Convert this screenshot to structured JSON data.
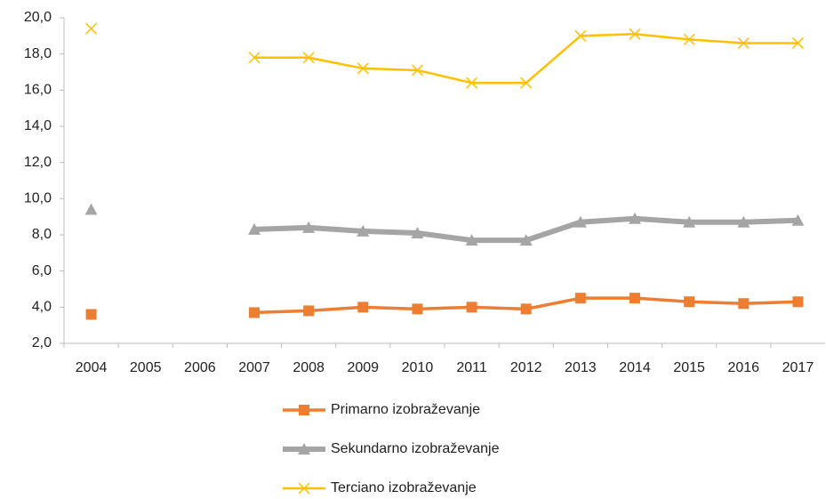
{
  "chart_data": {
    "type": "line",
    "categories": [
      "2004",
      "2005",
      "2006",
      "2007",
      "2008",
      "2009",
      "2010",
      "2011",
      "2012",
      "2013",
      "2014",
      "2015",
      "2016",
      "2017"
    ],
    "series": [
      {
        "name": "Primarno izobraževanje",
        "color": "#ED7D31",
        "marker": "square",
        "values": [
          3.6,
          null,
          null,
          3.7,
          3.8,
          4.0,
          3.9,
          4.0,
          3.9,
          4.5,
          4.5,
          4.3,
          4.2,
          4.3
        ]
      },
      {
        "name": "Sekundarno izobraževanje",
        "color": "#A5A5A5",
        "marker": "triangle",
        "values": [
          9.4,
          null,
          null,
          8.3,
          8.4,
          8.2,
          8.1,
          7.7,
          7.7,
          8.7,
          8.9,
          8.7,
          8.7,
          8.8
        ]
      },
      {
        "name": "Terciano izobraževanje",
        "color": "#FFC000",
        "marker": "x",
        "values": [
          19.4,
          null,
          null,
          17.8,
          17.8,
          17.2,
          17.1,
          16.4,
          16.4,
          19.0,
          19.1,
          18.8,
          18.6,
          18.6
        ]
      }
    ],
    "ylim": [
      2,
      20
    ],
    "yticks": [
      {
        "value": 2,
        "label": "2,0"
      },
      {
        "value": 4,
        "label": "4,0"
      },
      {
        "value": 6,
        "label": "6,0"
      },
      {
        "value": 8,
        "label": "8,0"
      },
      {
        "value": 10,
        "label": "10,0"
      },
      {
        "value": 12,
        "label": "12,0"
      },
      {
        "value": 14,
        "label": "14,0"
      },
      {
        "value": 16,
        "label": "16,0"
      },
      {
        "value": 18,
        "label": "18,0"
      },
      {
        "value": 20,
        "label": "20,0"
      }
    ],
    "grid": false,
    "legend": "bottom"
  }
}
